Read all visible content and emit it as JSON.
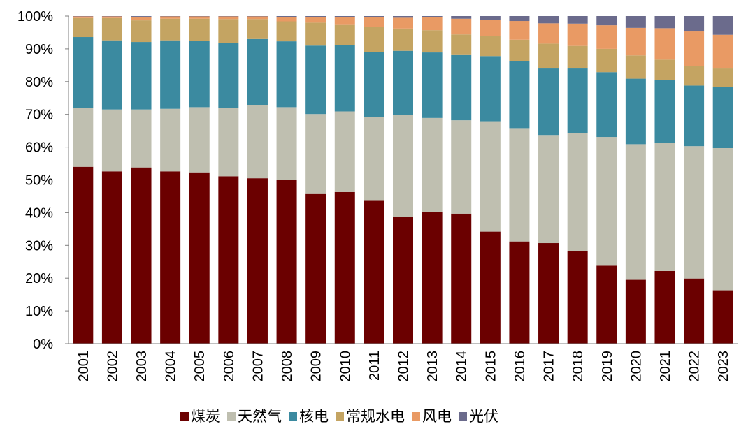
{
  "chart_data": {
    "type": "stacked-bar-100",
    "title": "",
    "xlabel": "",
    "ylabel": "",
    "ylim": [
      0,
      100
    ],
    "yticks": [
      "0%",
      "10%",
      "20%",
      "30%",
      "40%",
      "50%",
      "60%",
      "70%",
      "80%",
      "90%",
      "100%"
    ],
    "ytick_values": [
      0,
      10,
      20,
      30,
      40,
      50,
      60,
      70,
      80,
      90,
      100
    ],
    "categories": [
      "2001",
      "2002",
      "2003",
      "2004",
      "2005",
      "2006",
      "2007",
      "2008",
      "2009",
      "2010",
      "2011",
      "2012",
      "2013",
      "2014",
      "2015",
      "2016",
      "2017",
      "2018",
      "2019",
      "2020",
      "2021",
      "2022",
      "2023"
    ],
    "legend_position": "bottom",
    "series": [
      {
        "name": "煤炭",
        "color": "#6b0000",
        "values": [
          54.0,
          52.6,
          53.8,
          52.6,
          52.3,
          51.1,
          50.5,
          49.9,
          45.9,
          46.3,
          43.6,
          38.7,
          40.3,
          39.7,
          34.2,
          31.2,
          30.7,
          28.2,
          23.8,
          19.5,
          22.2,
          19.9,
          16.3
        ]
      },
      {
        "name": "天然气",
        "color": "#bfbfb0",
        "values": [
          18.0,
          18.9,
          17.7,
          19.1,
          19.9,
          20.8,
          22.3,
          22.3,
          24.2,
          24.6,
          25.5,
          31.1,
          28.6,
          28.5,
          33.7,
          34.6,
          33.0,
          36.0,
          39.3,
          41.4,
          39.0,
          40.4,
          43.4
        ]
      },
      {
        "name": "核电",
        "color": "#3b8aa0",
        "values": [
          21.6,
          21.1,
          20.6,
          20.9,
          20.3,
          20.0,
          20.2,
          20.1,
          20.9,
          20.2,
          19.9,
          19.6,
          20.0,
          19.9,
          19.9,
          20.4,
          20.3,
          19.8,
          19.8,
          20.0,
          19.4,
          18.5,
          18.6
        ]
      },
      {
        "name": "常规水电",
        "color": "#c4a462",
        "values": [
          5.8,
          6.8,
          6.6,
          6.6,
          6.7,
          7.2,
          6.1,
          6.1,
          7.0,
          6.2,
          7.8,
          6.8,
          6.8,
          6.3,
          6.2,
          6.6,
          7.6,
          6.9,
          7.1,
          7.1,
          6.1,
          5.9,
          5.7
        ]
      },
      {
        "name": "风电",
        "color": "#e99a64",
        "values": [
          0.5,
          0.5,
          1.1,
          0.7,
          0.7,
          0.8,
          0.8,
          1.3,
          1.7,
          2.4,
          2.9,
          3.3,
          4.0,
          4.8,
          4.9,
          5.7,
          6.2,
          6.8,
          7.2,
          8.4,
          9.6,
          10.6,
          10.3
        ]
      },
      {
        "name": "光伏",
        "color": "#6b6b8c",
        "values": [
          0.1,
          0.1,
          0.2,
          0.1,
          0.1,
          0.1,
          0.1,
          0.3,
          0.3,
          0.3,
          0.3,
          0.5,
          0.3,
          0.8,
          1.1,
          1.5,
          2.2,
          2.3,
          2.8,
          3.6,
          3.7,
          4.7,
          5.7
        ]
      }
    ]
  }
}
